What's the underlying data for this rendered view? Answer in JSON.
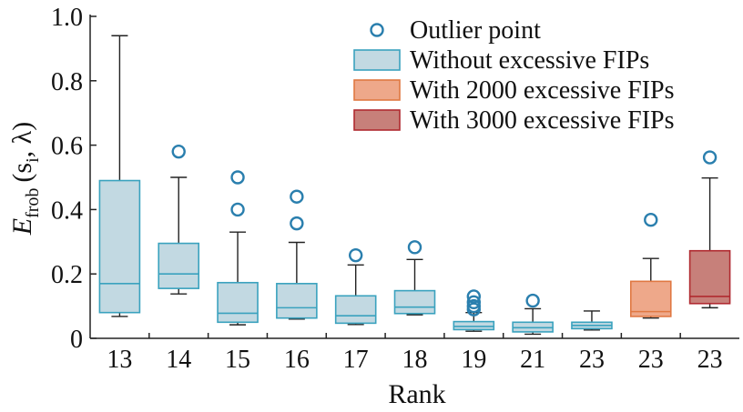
{
  "chart_data": {
    "type": "box",
    "xlabel": "Rank",
    "ylabel": {
      "main": "E",
      "sub": "frob",
      "args": "(s",
      "args_sub": "i",
      "args_end": ", λ)"
    },
    "ylim": [
      0,
      1.0
    ],
    "yticks": [
      0,
      0.2,
      0.4,
      0.6,
      0.8,
      1.0
    ],
    "ytick_labels": [
      "0",
      "0.2",
      "0.4",
      "0.6",
      "0.8",
      "1.0"
    ],
    "grid": false,
    "legend_position": "top-right",
    "colors": {
      "without": {
        "fill": "#c2d9e2",
        "stroke": "#3aa2be"
      },
      "with2000": {
        "fill": "#eea88a",
        "stroke": "#e07842"
      },
      "with3000": {
        "fill": "#c7807a",
        "stroke": "#b02a30"
      },
      "outlier": "#2a7fae",
      "whisker": "#222222"
    },
    "legend": [
      {
        "kind": "outlier",
        "label": "Outlier point"
      },
      {
        "kind": "without",
        "label": "Without excessive FIPs"
      },
      {
        "kind": "with2000",
        "label": "With 2000 excessive FIPs"
      },
      {
        "kind": "with3000",
        "label": "With 3000 excessive FIPs"
      }
    ],
    "boxes": [
      {
        "rank": "13",
        "group": "without",
        "min": 0.068,
        "q1": 0.08,
        "median": 0.17,
        "q3": 0.49,
        "max": 0.94,
        "outliers": []
      },
      {
        "rank": "14",
        "group": "without",
        "min": 0.138,
        "q1": 0.155,
        "median": 0.2,
        "q3": 0.295,
        "max": 0.5,
        "outliers": [
          0.58
        ]
      },
      {
        "rank": "15",
        "group": "without",
        "min": 0.042,
        "q1": 0.05,
        "median": 0.078,
        "q3": 0.173,
        "max": 0.33,
        "outliers": [
          0.4,
          0.5
        ]
      },
      {
        "rank": "16",
        "group": "without",
        "min": 0.06,
        "q1": 0.063,
        "median": 0.095,
        "q3": 0.17,
        "max": 0.298,
        "outliers": [
          0.357,
          0.44
        ]
      },
      {
        "rank": "17",
        "group": "without",
        "min": 0.043,
        "q1": 0.047,
        "median": 0.07,
        "q3": 0.132,
        "max": 0.228,
        "outliers": [
          0.258
        ]
      },
      {
        "rank": "18",
        "group": "without",
        "min": 0.073,
        "q1": 0.077,
        "median": 0.097,
        "q3": 0.148,
        "max": 0.245,
        "outliers": [
          0.283
        ]
      },
      {
        "rank": "19",
        "group": "without",
        "min": 0.022,
        "q1": 0.027,
        "median": 0.037,
        "q3": 0.052,
        "max": 0.08,
        "outliers": [
          0.09,
          0.1,
          0.112,
          0.13
        ]
      },
      {
        "rank": "21",
        "group": "without",
        "min": 0.013,
        "q1": 0.02,
        "median": 0.033,
        "q3": 0.05,
        "max": 0.092,
        "outliers": [
          0.117
        ]
      },
      {
        "rank": "23",
        "group": "without",
        "min": 0.026,
        "q1": 0.03,
        "median": 0.04,
        "q3": 0.05,
        "max": 0.085,
        "outliers": []
      },
      {
        "rank": "23",
        "group": "with2000",
        "min": 0.063,
        "q1": 0.068,
        "median": 0.083,
        "q3": 0.177,
        "max": 0.248,
        "outliers": [
          0.368
        ]
      },
      {
        "rank": "23",
        "group": "with3000",
        "min": 0.095,
        "q1": 0.108,
        "median": 0.13,
        "q3": 0.272,
        "max": 0.498,
        "outliers": [
          0.562
        ]
      }
    ]
  }
}
